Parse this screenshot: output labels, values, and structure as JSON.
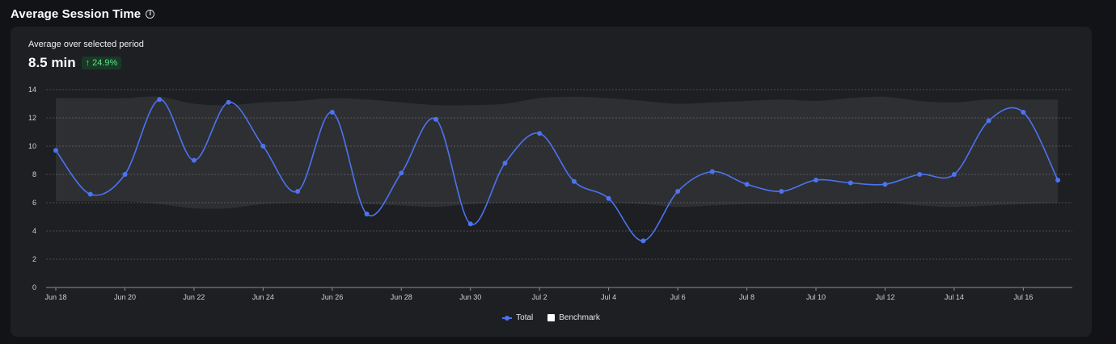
{
  "header": {
    "title": "Average Session Time",
    "info_icon": "info-circle-icon"
  },
  "summary": {
    "label": "Average over selected period",
    "value": "8.5 min",
    "change": "24.9%",
    "change_icon": "arrow-up-icon"
  },
  "chart_data": {
    "type": "line",
    "title": "",
    "xlabel": "",
    "ylabel": "",
    "ylim": [
      0,
      14
    ],
    "yticks": [
      0,
      2,
      4,
      6,
      8,
      10,
      12,
      14
    ],
    "grid": true,
    "legend_placement": "bottom-center",
    "x_tick_labels": [
      "Jun 18",
      "Jun 20",
      "Jun 22",
      "Jun 24",
      "Jun 26",
      "Jun 28",
      "Jun 30",
      "Jul 2",
      "Jul 4",
      "Jul 6",
      "Jul 8",
      "Jul 10",
      "Jul 12",
      "Jul 14",
      "Jul 16"
    ],
    "x": [
      "Jun 18",
      "Jun 19",
      "Jun 20",
      "Jun 21",
      "Jun 22",
      "Jun 23",
      "Jun 24",
      "Jun 25",
      "Jun 26",
      "Jun 27",
      "Jun 28",
      "Jun 29",
      "Jun 30",
      "Jul 1",
      "Jul 2",
      "Jul 3",
      "Jul 4",
      "Jul 5",
      "Jul 6",
      "Jul 7",
      "Jul 8",
      "Jul 9",
      "Jul 10",
      "Jul 11",
      "Jul 12",
      "Jul 13",
      "Jul 14",
      "Jul 15",
      "Jul 16",
      "Jul 17"
    ],
    "series": [
      {
        "name": "Total",
        "color": "#4c73f0",
        "values": [
          9.7,
          6.6,
          8.0,
          13.3,
          9.0,
          13.1,
          10.0,
          6.8,
          12.4,
          5.2,
          8.1,
          11.9,
          4.5,
          8.8,
          10.9,
          7.5,
          6.3,
          3.3,
          6.8,
          8.2,
          7.3,
          6.8,
          7.6,
          7.4,
          7.3,
          8.0,
          8.0,
          11.8,
          12.4,
          7.6
        ]
      }
    ],
    "benchmark": {
      "name": "Benchmark",
      "color": "#ffffff",
      "upper": [
        13.4,
        13.4,
        13.4,
        13.5,
        13.0,
        12.9,
        13.1,
        13.2,
        13.4,
        13.3,
        13.1,
        12.9,
        12.9,
        13.0,
        13.4,
        13.5,
        13.4,
        13.2,
        13.0,
        13.1,
        13.2,
        13.3,
        13.2,
        13.4,
        13.5,
        13.2,
        13.1,
        13.3,
        13.3,
        13.3
      ],
      "lower": [
        6.1,
        6.1,
        6.1,
        5.9,
        5.6,
        5.6,
        5.9,
        6.0,
        6.0,
        5.9,
        5.8,
        5.7,
        5.9,
        6.0,
        6.0,
        6.0,
        6.0,
        5.9,
        5.7,
        5.8,
        5.9,
        5.9,
        5.9,
        5.9,
        6.0,
        5.8,
        5.7,
        5.8,
        5.9,
        6.0
      ]
    }
  }
}
